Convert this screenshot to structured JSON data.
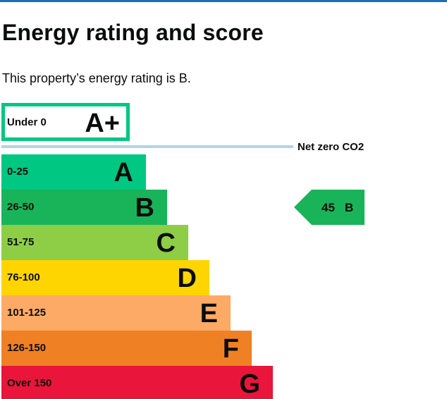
{
  "page": {
    "title": "Energy rating and score",
    "intro": "This property’s energy rating is B."
  },
  "chart_data": {
    "type": "bar",
    "plus_band": {
      "label": "Under 0",
      "letter": "A+",
      "color": "#00c781"
    },
    "net_zero_label": "Net zero CO2",
    "bands": [
      {
        "range": "0-25",
        "letter": "A",
        "color": "#00c781"
      },
      {
        "range": "26-50",
        "letter": "B",
        "color": "#19b459"
      },
      {
        "range": "51-75",
        "letter": "C",
        "color": "#8dce46"
      },
      {
        "range": "76-100",
        "letter": "D",
        "color": "#ffd500"
      },
      {
        "range": "101-125",
        "letter": "E",
        "color": "#fcaa65"
      },
      {
        "range": "126-150",
        "letter": "F",
        "color": "#ef8023"
      },
      {
        "range": "Over 150",
        "letter": "G",
        "color": "#e9153b"
      }
    ],
    "current": {
      "score": 45,
      "letter": "B",
      "color": "#19b459"
    },
    "colors": {
      "net_zero_line": "#b1d4e6",
      "title_rule": "#1d70b8"
    }
  }
}
